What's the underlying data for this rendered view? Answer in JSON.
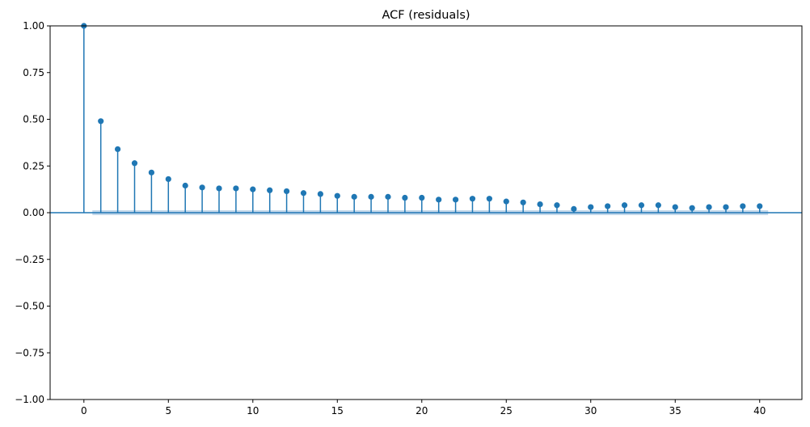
{
  "chart_data": {
    "type": "stem",
    "title": "ACF (residuals)",
    "xlabel": "",
    "ylabel": "",
    "xlim": [
      -2,
      42.5
    ],
    "ylim": [
      -1.0,
      1.0
    ],
    "grid": false,
    "legend": "none",
    "x_ticks": [
      0,
      5,
      10,
      15,
      20,
      25,
      30,
      35,
      40
    ],
    "x_tick_labels": [
      "0",
      "5",
      "10",
      "15",
      "20",
      "25",
      "30",
      "35",
      "40"
    ],
    "y_ticks": [
      1.0,
      0.75,
      0.5,
      0.25,
      0.0,
      -0.25,
      -0.5,
      -0.75,
      -1.0
    ],
    "y_tick_labels": [
      "1.00",
      "0.75",
      "0.50",
      "0.25",
      "0.00",
      "−0.25",
      "−0.50",
      "−0.75",
      "−1.00"
    ],
    "lags": [
      0,
      1,
      2,
      3,
      4,
      5,
      6,
      7,
      8,
      9,
      10,
      11,
      12,
      13,
      14,
      15,
      16,
      17,
      18,
      19,
      20,
      21,
      22,
      23,
      24,
      25,
      26,
      27,
      28,
      29,
      30,
      31,
      32,
      33,
      34,
      35,
      36,
      37,
      38,
      39,
      40
    ],
    "values": [
      1.0,
      0.49,
      0.34,
      0.265,
      0.215,
      0.18,
      0.145,
      0.135,
      0.13,
      0.13,
      0.125,
      0.12,
      0.115,
      0.105,
      0.1,
      0.09,
      0.085,
      0.085,
      0.085,
      0.08,
      0.08,
      0.07,
      0.07,
      0.075,
      0.075,
      0.06,
      0.055,
      0.045,
      0.04,
      0.02,
      0.03,
      0.035,
      0.04,
      0.04,
      0.04,
      0.03,
      0.025,
      0.03,
      0.03,
      0.035,
      0.035
    ],
    "confidence_band": {
      "lag_start": 0.5,
      "lag_end": 40.5,
      "upper": 0.013,
      "lower": -0.013,
      "color": "#aec9e3"
    },
    "colors": {
      "stem": "#1f77b4",
      "zero_line": "#1f77b4"
    }
  }
}
